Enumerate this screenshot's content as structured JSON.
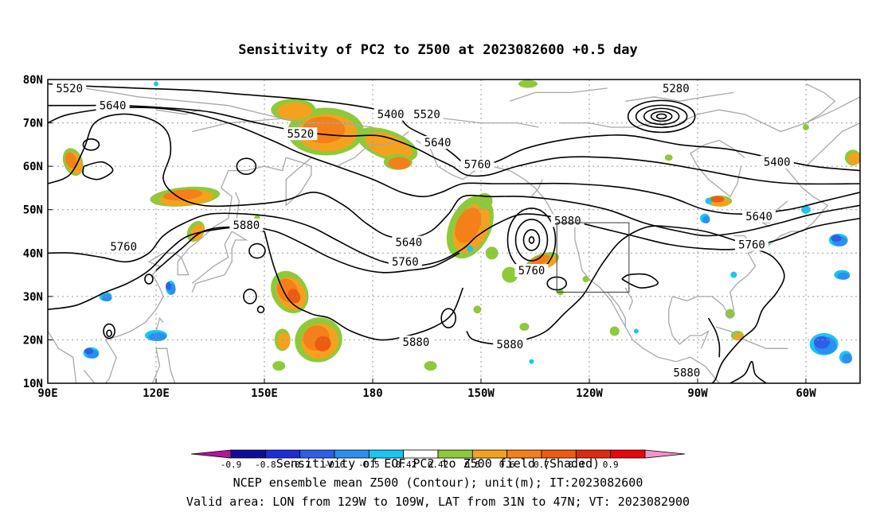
{
  "title": "Sensitivity of PC2 to Z500 at 2023082600 +0.5 day",
  "lat_labels": [
    "80N",
    "70N",
    "60N",
    "50N",
    "40N",
    "30N",
    "20N",
    "10N"
  ],
  "lon_labels": [
    "90E",
    "120E",
    "150E",
    "180",
    "150W",
    "120W",
    "90W",
    "60W"
  ],
  "contour_labels": [
    {
      "text": "5520",
      "lon": 96,
      "lat": 78
    },
    {
      "text": "5640",
      "lon": 108,
      "lat": 74
    },
    {
      "text": "5400",
      "lon": 185,
      "lat": 72
    },
    {
      "text": "5520",
      "lon": 160,
      "lat": 67.5
    },
    {
      "text": "5520",
      "lon": 195,
      "lat": 72
    },
    {
      "text": "5640",
      "lon": 198,
      "lat": 65.5
    },
    {
      "text": "5760",
      "lon": 209,
      "lat": 60.5
    },
    {
      "text": "5280",
      "lon": 264,
      "lat": 78
    },
    {
      "text": "5400",
      "lon": 292,
      "lat": 61
    },
    {
      "text": "5640",
      "lon": 287,
      "lat": 48.5
    },
    {
      "text": "5760",
      "lon": 285,
      "lat": 42
    },
    {
      "text": "5880",
      "lon": 234,
      "lat": 47.5
    },
    {
      "text": "5880",
      "lon": 145,
      "lat": 46.5
    },
    {
      "text": "5760",
      "lon": 111,
      "lat": 41.5
    },
    {
      "text": "5640",
      "lon": 190,
      "lat": 42.5
    },
    {
      "text": "5760",
      "lon": 189,
      "lat": 38
    },
    {
      "text": "5760",
      "lon": 224,
      "lat": 36
    },
    {
      "text": "5880",
      "lon": 192,
      "lat": 19.5
    },
    {
      "text": "5880",
      "lon": 218,
      "lat": 19
    },
    {
      "text": "5880",
      "lon": 267,
      "lat": 12.5
    }
  ],
  "colorbar": {
    "levels": [
      "-0.9",
      "-0.8",
      "-0.7",
      "-0.6",
      "-0.5",
      "-0.42",
      "0.42",
      "0.5",
      "0.6",
      "0.7",
      "0.8",
      "0.9"
    ],
    "colors": [
      "#0e0b9c",
      "#1d2bd8",
      "#2f5fe8",
      "#2a8ff0",
      "#19c6f2",
      "#ffffff",
      "#8fc93a",
      "#f4a21e",
      "#f57f18",
      "#ef5a10",
      "#e02a10",
      "#e8060f"
    ],
    "low_color": "#b0169c",
    "high_color": "#f392c9"
  },
  "captions": [
    "Sensitivity of EOF PC2 to Z500 field (Shaded)",
    "NCEP ensemble mean Z500 (Contour); unit(m); IT:2023082600",
    "Valid area: LON from 129W to 109W, LAT from 31N to 47N; VT: 2023082900"
  ],
  "valid_area": {
    "lon_west": -129,
    "lon_east": -109,
    "lat_south": 31,
    "lat_north": 47
  }
}
